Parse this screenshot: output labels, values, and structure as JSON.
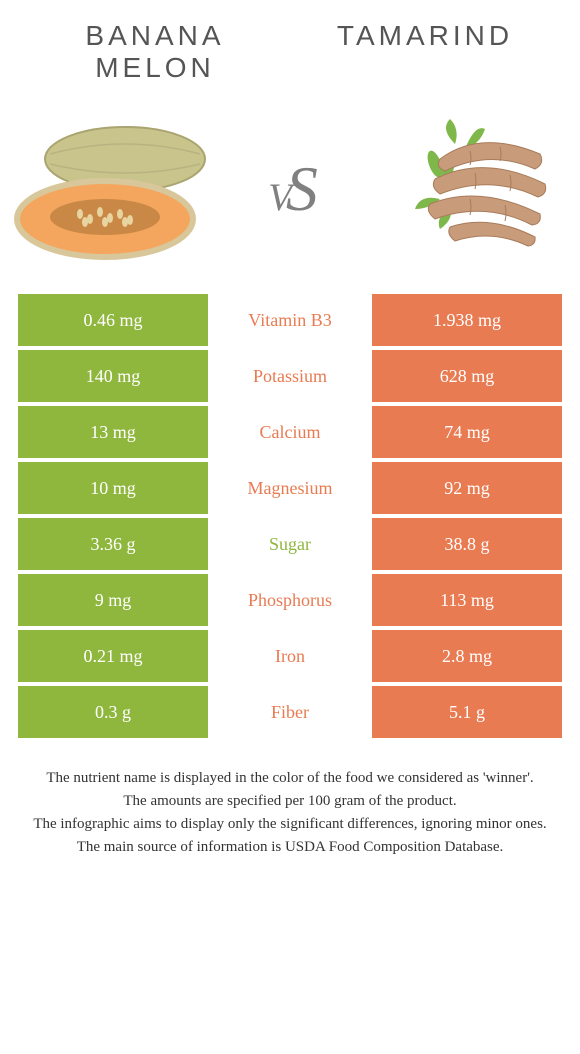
{
  "header": {
    "left_title_line1": "BANANA",
    "left_title_line2": "MELON",
    "right_title": "TAMARIND",
    "vs_text": "vS"
  },
  "colors": {
    "left": "#8fb73e",
    "right": "#e87b52",
    "mid_bg": "#ffffff"
  },
  "rows": [
    {
      "left": "0.46 mg",
      "label": "Vitamin B3",
      "right": "1.938 mg",
      "winner": "right"
    },
    {
      "left": "140 mg",
      "label": "Potassium",
      "right": "628 mg",
      "winner": "right"
    },
    {
      "left": "13 mg",
      "label": "Calcium",
      "right": "74 mg",
      "winner": "right"
    },
    {
      "left": "10 mg",
      "label": "Magnesium",
      "right": "92 mg",
      "winner": "right"
    },
    {
      "left": "3.36 g",
      "label": "Sugar",
      "right": "38.8 g",
      "winner": "left"
    },
    {
      "left": "9 mg",
      "label": "Phosphorus",
      "right": "113 mg",
      "winner": "right"
    },
    {
      "left": "0.21 mg",
      "label": "Iron",
      "right": "2.8 mg",
      "winner": "right"
    },
    {
      "left": "0.3 g",
      "label": "Fiber",
      "right": "5.1 g",
      "winner": "right"
    }
  ],
  "footer": {
    "line1": "The nutrient name is displayed in the color of the food we considered as 'winner'.",
    "line2": "The amounts are specified per 100 gram of the product.",
    "line3": "The infographic aims to display only the significant differences, ignoring minor ones.",
    "line4": "The main source of information is USDA Food Composition Database."
  }
}
